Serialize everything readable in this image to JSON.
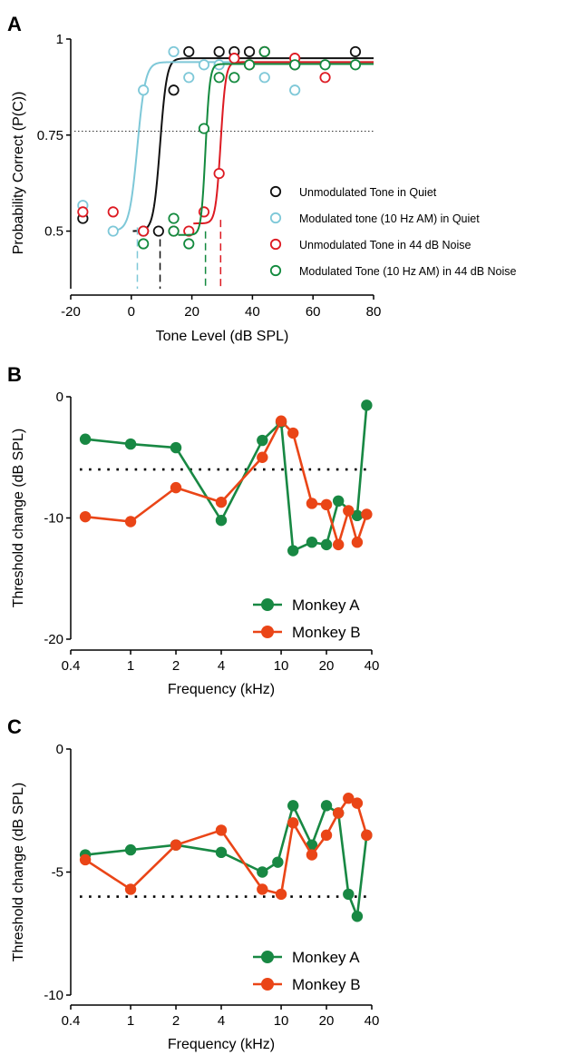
{
  "chart_data": [
    {
      "panel": "A",
      "type": "scatter",
      "xlabel": "Tone Level (dB SPL)",
      "ylabel": "Probability Correct (P(C))",
      "xlim": [
        -20,
        80
      ],
      "ylim": [
        0.35,
        1.0
      ],
      "xticks": [
        -20,
        0,
        20,
        40,
        60,
        80
      ],
      "xtick_labels": [
        "-20",
        "0",
        "20",
        "40",
        "60",
        "80"
      ],
      "yticks": [
        0.5,
        0.75,
        1.0
      ],
      "ytick_labels": [
        "0.5",
        "0.75",
        "1"
      ],
      "reference_line": {
        "y": 0.76,
        "style": "dotted"
      },
      "legend_position": "right",
      "series": [
        {
          "name": "Unmodulated Tone in Quiet",
          "color": "#111111",
          "threshold": 9.5,
          "fit": {
            "min": 0.5,
            "max": 0.95,
            "mid": 9.5,
            "slope": 0.9
          },
          "points": [
            [
              -16,
              0.533
            ],
            [
              4,
              0.5
            ],
            [
              9,
              0.5
            ],
            [
              14,
              0.867
            ],
            [
              19,
              0.967
            ],
            [
              29,
              0.967
            ],
            [
              34,
              0.967
            ],
            [
              39,
              0.967
            ],
            [
              44,
              0.967
            ],
            [
              54,
              0.933
            ],
            [
              74,
              0.967
            ]
          ]
        },
        {
          "name": "Modulated tone (10 Hz AM) in Quiet",
          "color": "#7ec8d8",
          "threshold": 2,
          "fit": {
            "min": 0.5,
            "max": 0.94,
            "mid": 2,
            "slope": 0.75
          },
          "points": [
            [
              -16,
              0.567
            ],
            [
              -6,
              0.5
            ],
            [
              4,
              0.867
            ],
            [
              14,
              0.967
            ],
            [
              19,
              0.9
            ],
            [
              24,
              0.933
            ],
            [
              29,
              0.933
            ],
            [
              44,
              0.9
            ],
            [
              54,
              0.867
            ]
          ]
        },
        {
          "name": "Unmodulated Tone in 44 dB Noise",
          "color": "#dd1a22",
          "threshold": 29.5,
          "fit": {
            "min": 0.52,
            "max": 0.94,
            "mid": 29.5,
            "slope": 1.2
          },
          "points": [
            [
              -16,
              0.55
            ],
            [
              -6,
              0.55
            ],
            [
              4,
              0.5
            ],
            [
              14,
              0.5
            ],
            [
              19,
              0.5
            ],
            [
              24,
              0.55
            ],
            [
              29,
              0.65
            ],
            [
              34,
              0.95
            ],
            [
              39,
              0.933
            ],
            [
              44,
              0.967
            ],
            [
              54,
              0.95
            ],
            [
              64,
              0.9
            ]
          ]
        },
        {
          "name": "Modulated Tone (10 Hz AM) in 44 dB Noise",
          "color": "#138a3e",
          "threshold": 24.5,
          "fit": {
            "min": 0.49,
            "max": 0.935,
            "mid": 24.5,
            "slope": 1.4
          },
          "points": [
            [
              4,
              0.467
            ],
            [
              14,
              0.533
            ],
            [
              14,
              0.5
            ],
            [
              19,
              0.467
            ],
            [
              24,
              0.767
            ],
            [
              29,
              0.9
            ],
            [
              34,
              0.9
            ],
            [
              39,
              0.933
            ],
            [
              44,
              0.967
            ],
            [
              54,
              0.933
            ],
            [
              64,
              0.933
            ],
            [
              74,
              0.933
            ]
          ]
        }
      ]
    },
    {
      "panel": "B",
      "type": "line",
      "xlabel": "Frequency (kHz)",
      "ylabel": "Threshold change (dB SPL)",
      "xscale": "log",
      "xlim": [
        0.4,
        40
      ],
      "ylim": [
        -20,
        0
      ],
      "xticks": [
        0.4,
        1,
        2,
        4,
        10,
        20,
        40
      ],
      "xtick_labels": [
        "0.4",
        "1",
        "2",
        "4",
        "10",
        "20",
        "40"
      ],
      "yticks": [
        -20,
        -10,
        0
      ],
      "ytick_labels": [
        "-20",
        "-10",
        "0"
      ],
      "reference_line": {
        "y": -6,
        "style": "dotted"
      },
      "legend_position": "bottom-right",
      "series": [
        {
          "name": "Monkey A",
          "color": "#188843",
          "x": [
            0.5,
            1,
            2,
            4,
            7.5,
            10,
            12,
            16,
            20,
            24,
            32,
            37
          ],
          "y": [
            -3.5,
            -3.9,
            -4.2,
            -10.2,
            -3.6,
            -2.1,
            -12.7,
            -12.0,
            -12.2,
            -8.6,
            -9.8,
            -0.7
          ]
        },
        {
          "name": "Monkey B",
          "color": "#ea4517",
          "x": [
            0.5,
            1,
            2,
            4,
            7.5,
            10,
            12,
            16,
            20,
            24,
            28,
            32,
            37
          ],
          "y": [
            -9.9,
            -10.3,
            -7.5,
            -8.7,
            -5.0,
            -2.0,
            -3.0,
            -8.8,
            -8.9,
            -12.2,
            -9.4,
            -12.0,
            -9.7
          ]
        }
      ]
    },
    {
      "panel": "C",
      "type": "line",
      "xlabel": "Frequency (kHz)",
      "ylabel": "Threshold change (dB SPL)",
      "xscale": "log",
      "xlim": [
        0.4,
        40
      ],
      "ylim": [
        -10,
        0
      ],
      "xticks": [
        0.4,
        1,
        2,
        4,
        10,
        20,
        40
      ],
      "xtick_labels": [
        "0.4",
        "1",
        "2",
        "4",
        "10",
        "20",
        "40"
      ],
      "yticks": [
        -10,
        -5,
        0
      ],
      "ytick_labels": [
        "-10",
        "-5",
        "0"
      ],
      "reference_line": {
        "y": -6,
        "style": "dotted"
      },
      "legend_position": "bottom-right",
      "series": [
        {
          "name": "Monkey A",
          "color": "#188843",
          "x": [
            0.5,
            1,
            2,
            4,
            7.5,
            9.5,
            12,
            16,
            20,
            24,
            28,
            32,
            37
          ],
          "y": [
            -4.3,
            -4.1,
            -3.9,
            -4.2,
            -5.0,
            -4.6,
            -2.3,
            -3.9,
            -2.3,
            -2.6,
            -5.9,
            -6.8,
            -3.5
          ]
        },
        {
          "name": "Monkey B",
          "color": "#ea4517",
          "x": [
            0.5,
            1,
            2,
            4,
            7.5,
            10,
            12,
            16,
            20,
            24,
            28,
            32,
            37
          ],
          "y": [
            -4.5,
            -5.7,
            -3.9,
            -3.3,
            -5.7,
            -5.9,
            -3.0,
            -4.3,
            -3.5,
            -2.6,
            -2.0,
            -2.2,
            -3.5
          ]
        }
      ]
    }
  ]
}
